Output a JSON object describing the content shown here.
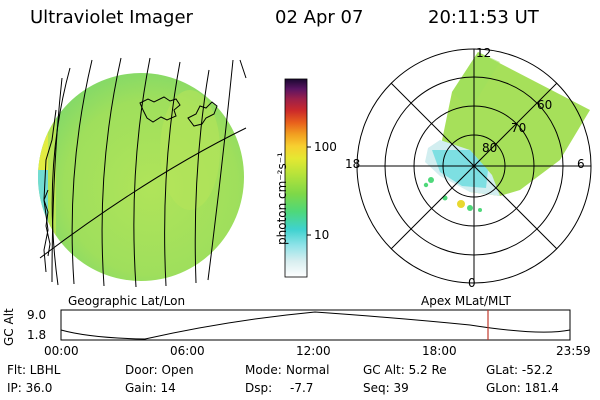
{
  "header": {
    "title": "Ultraviolet Imager",
    "date": "02 Apr 07",
    "time": "20:11:53 UT"
  },
  "colorbar": {
    "label": "photon cm⁻²s⁻¹",
    "ticks": [
      "100",
      "10"
    ]
  },
  "polar": {
    "clock_labels": [
      "12",
      "18",
      "6",
      "0"
    ],
    "lat_labels": [
      "60",
      "70",
      "80"
    ]
  },
  "panel_labels": {
    "left": "Geographic Lat/Lon",
    "right": "Apex MLat/MLT"
  },
  "altitude_plot": {
    "ylabel": "GC Alt",
    "y_ticks": [
      "9.0",
      "1.8"
    ],
    "x_ticks": [
      "00:00",
      "06:00",
      "12:00",
      "18:00",
      "23:59"
    ],
    "marker_time": "20:11"
  },
  "info": {
    "row1": {
      "flt": "Flt: LBHL",
      "door": "Door: Open",
      "mode_label": "Mode:",
      "mode_value": "Normal",
      "gc_alt": "GC Alt: 5.2 Re",
      "glat": "GLat: -52.2"
    },
    "row2": {
      "ip": "IP: 36.0",
      "gain": "Gain: 14",
      "dsp_label": "Dsp:",
      "dsp_value": "-7.7",
      "seq": "Seq: 39",
      "glon": "GLon: 181.4"
    }
  },
  "colors": {
    "field": "#a6e05a",
    "bright": "#d8ec3c",
    "cyan": "#6fdcdf",
    "marker": "#c0392b"
  }
}
